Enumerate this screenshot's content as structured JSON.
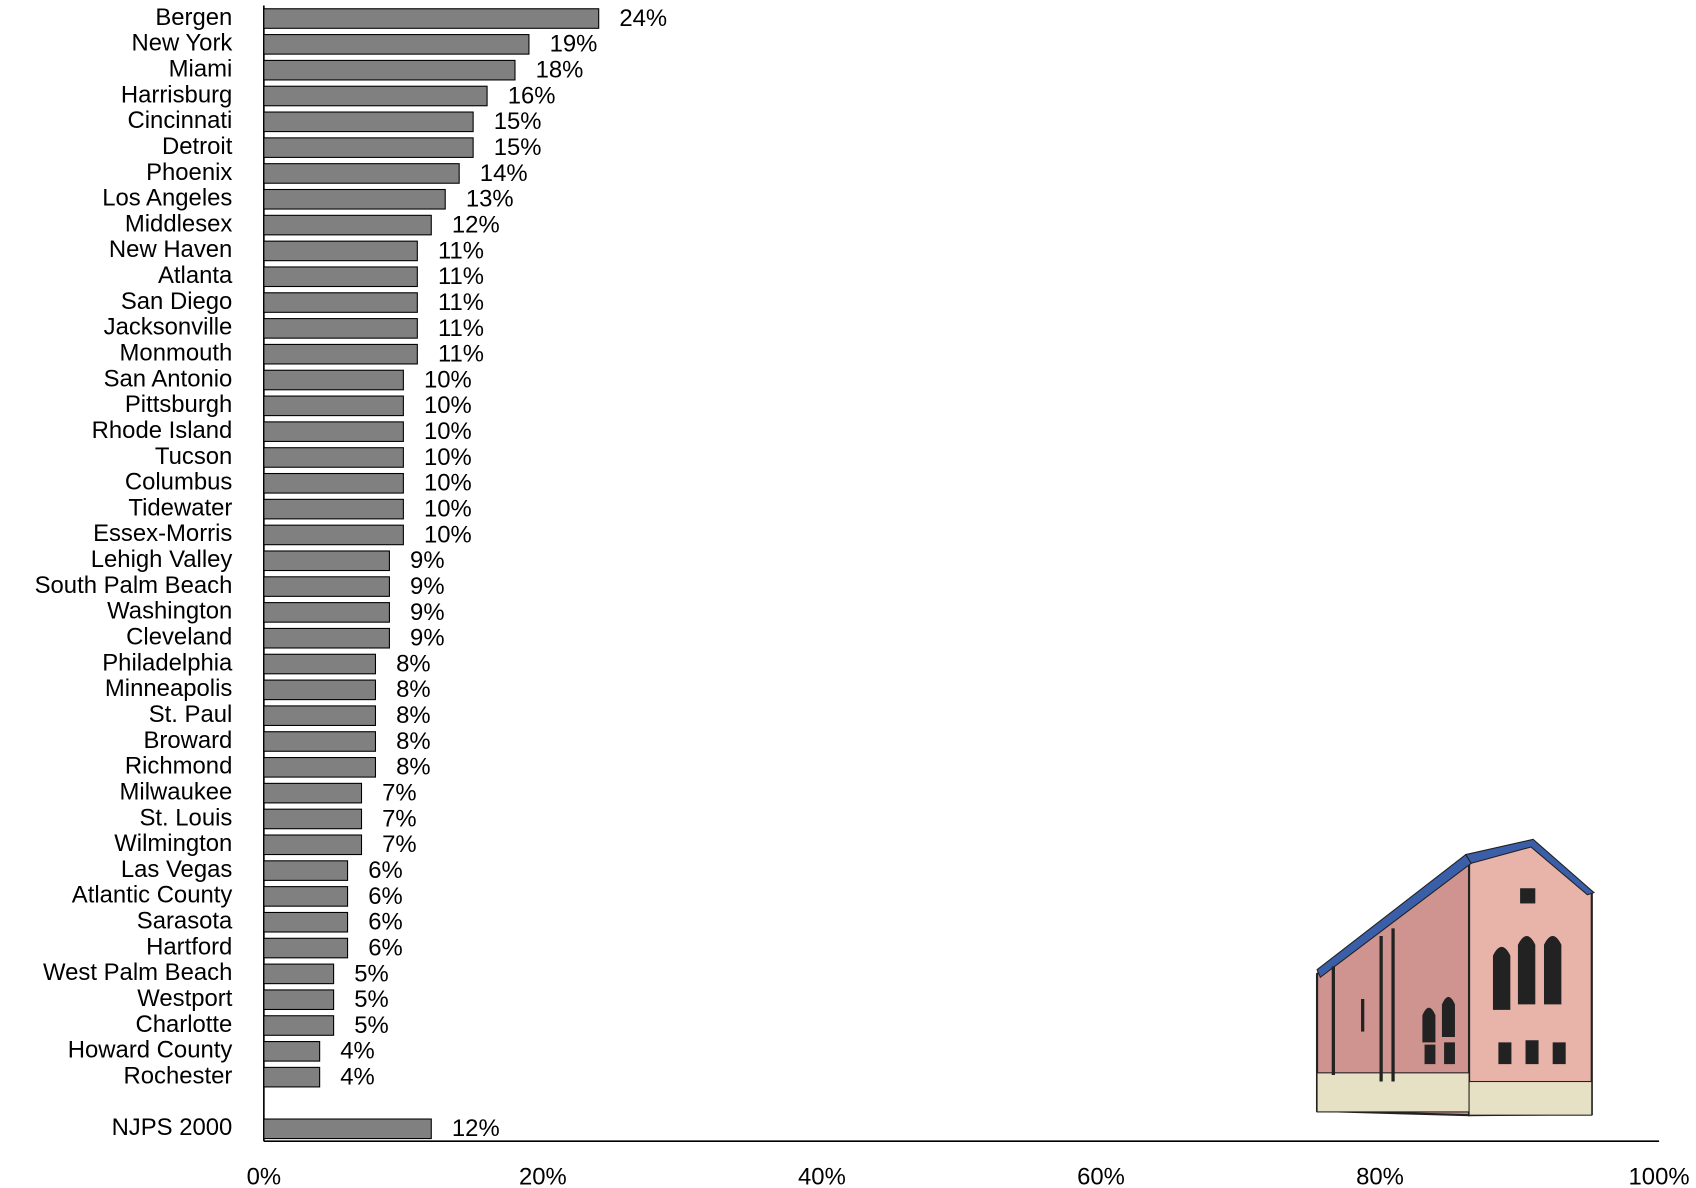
{
  "chart_data": {
    "type": "hbar",
    "categories": [
      "Bergen",
      "New York",
      "Miami",
      "Harrisburg",
      "Cincinnati",
      "Detroit",
      "Phoenix",
      "Los Angeles",
      "Middlesex",
      "New Haven",
      "Atlanta",
      "San Diego",
      "Jacksonville",
      "Monmouth",
      "San Antonio",
      "Pittsburgh",
      "Rhode Island",
      "Tucson",
      "Columbus",
      "Tidewater",
      "Essex-Morris",
      "Lehigh Valley",
      "South Palm Beach",
      "Washington",
      "Cleveland",
      "Philadelphia",
      "Minneapolis",
      "St. Paul",
      "Broward",
      "Richmond",
      "Milwaukee",
      "St. Louis",
      "Wilmington",
      "Las Vegas",
      "Atlantic County",
      "Sarasota",
      "Hartford",
      "West Palm Beach",
      "Westport",
      "Charlotte",
      "Howard County",
      "Rochester",
      null,
      "NJPS 2000"
    ],
    "values": [
      24,
      19,
      18,
      16,
      15,
      15,
      14,
      13,
      12,
      11,
      11,
      11,
      11,
      11,
      10,
      10,
      10,
      10,
      10,
      10,
      10,
      9,
      9,
      9,
      9,
      8,
      8,
      8,
      8,
      8,
      7,
      7,
      7,
      6,
      6,
      6,
      6,
      5,
      5,
      5,
      4,
      4,
      null,
      12
    ],
    "value_labels": [
      "24%",
      "19%",
      "18%",
      "16%",
      "15%",
      "15%",
      "14%",
      "13%",
      "12%",
      "11%",
      "11%",
      "11%",
      "11%",
      "11%",
      "10%",
      "10%",
      "10%",
      "10%",
      "10%",
      "10%",
      "10%",
      "9%",
      "9%",
      "9%",
      "9%",
      "8%",
      "8%",
      "8%",
      "8%",
      "8%",
      "7%",
      "7%",
      "7%",
      "6%",
      "6%",
      "6%",
      "6%",
      "5%",
      "5%",
      "5%",
      "4%",
      "4%",
      null,
      "12%"
    ],
    "color": "#808080",
    "xlim": [
      0,
      100
    ],
    "xticks": [
      {
        "value": 0,
        "label": "0%"
      },
      {
        "value": 20,
        "label": "20%"
      },
      {
        "value": 40,
        "label": "40%"
      },
      {
        "value": 60,
        "label": "60%"
      },
      {
        "value": 80,
        "label": "80%"
      },
      {
        "value": 100,
        "label": "100%"
      }
    ],
    "grid": false
  }
}
